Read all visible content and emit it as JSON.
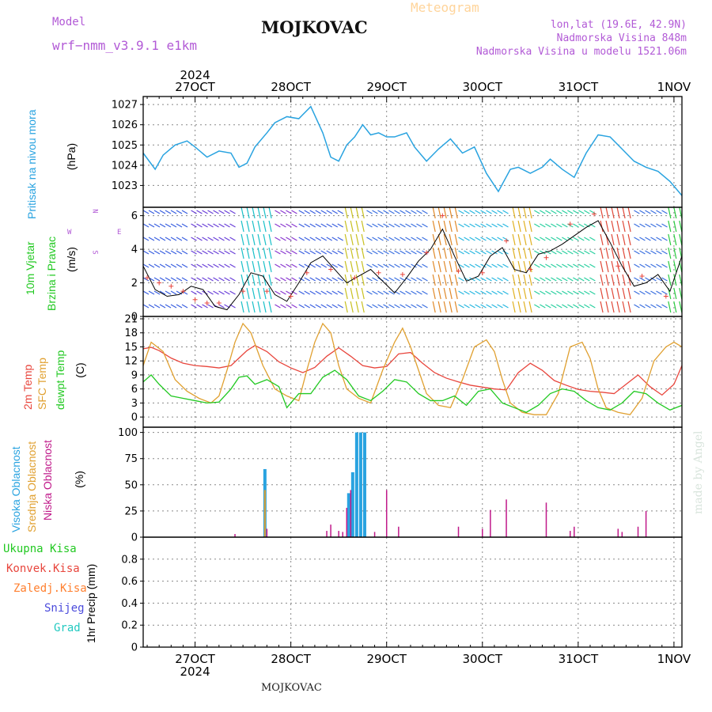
{
  "header": {
    "model_label": "Model",
    "model_name": "wrf−nmm_v3.9.1  e1km",
    "station": "MOJKOVAC",
    "meteogram": "Meteogram",
    "lonlat": "lon,lat (19.6E, 42.9N)",
    "elev": "Nadmorska Visina 848m",
    "elev_model": "Nadmorska Visina u modelu 1521.06m",
    "footer_station": "MOJKOVAC",
    "credit": "made by Angel"
  },
  "time_axis": {
    "year": "2024",
    "day_labels": [
      "27OCT",
      "28OCT",
      "29OCT",
      "30OCT",
      "31OCT",
      "1NOV"
    ],
    "x_range_hours": [
      -13,
      122
    ]
  },
  "colors": {
    "pressure": "#29a3e0",
    "temp2m": "#e8453c",
    "sfc_temp": "#e0a030",
    "dewpt": "#22c922",
    "high_cloud": "#29a3e0",
    "mid_cloud": "#e0a030",
    "low_cloud": "#c0198a",
    "wind_speed": "#000000",
    "gust": "#e8453c"
  },
  "panels": {
    "pressure": {
      "label_color_text": "Pritisak na nivou mora",
      "unit": "(hPa)"
    },
    "wind": {
      "label1": "10m Vjetar",
      "label2": "Brzina i Pravac",
      "unit": "(m/s)",
      "compass": {
        "n": "N",
        "s": "S",
        "w": "W",
        "e": "E"
      }
    },
    "temp": {
      "label1": "2m Temp",
      "label2": "SFC Temp",
      "label3": "dewpt Temp",
      "unit": "(C)"
    },
    "cloud": {
      "label1": "Visoka Oblacnost",
      "label2": "Srednja Oblacnost",
      "label3": "Niska Oblacnost",
      "unit": "(%)"
    },
    "precip": {
      "legend": [
        "Ukupna Kisa",
        "Konvek.Kisa",
        "Zaledj.Kisa",
        "Snijeg",
        "Grad"
      ],
      "unit": "1hr Precip (mm)"
    }
  },
  "chart_data": [
    {
      "type": "line",
      "title": "",
      "ylabel": "(hPa)",
      "ylim": [
        1022,
        1027.2
      ],
      "yticks": [
        1023,
        1024,
        1025,
        1026,
        1027
      ],
      "series": [
        {
          "name": "Pritisak na nivou mora",
          "x": [
            -13,
            -10,
            -8,
            -5,
            -2,
            0,
            3,
            6,
            9,
            11,
            13,
            15,
            18,
            20,
            23,
            26,
            29,
            32,
            34,
            36,
            38,
            40,
            42,
            44,
            46,
            48,
            50,
            53,
            55,
            58,
            61,
            64,
            67,
            70,
            73,
            76,
            79,
            81,
            84,
            87,
            89,
            92,
            95,
            98,
            101,
            104,
            107,
            110,
            113,
            116,
            119,
            122
          ],
          "values": [
            1024.6,
            1023.8,
            1024.5,
            1025.0,
            1025.2,
            1024.9,
            1024.4,
            1024.7,
            1024.6,
            1023.9,
            1024.1,
            1024.9,
            1025.6,
            1026.1,
            1026.4,
            1026.3,
            1026.9,
            1025.6,
            1024.4,
            1024.2,
            1025.0,
            1025.4,
            1026.0,
            1025.5,
            1025.6,
            1025.4,
            1025.4,
            1025.6,
            1024.9,
            1024.2,
            1024.8,
            1025.3,
            1024.6,
            1024.9,
            1023.6,
            1022.7,
            1023.8,
            1023.9,
            1023.6,
            1023.9,
            1024.3,
            1023.8,
            1023.4,
            1024.6,
            1025.5,
            1025.4,
            1024.8,
            1024.2,
            1023.9,
            1023.7,
            1023.2,
            1022.5
          ]
        }
      ]
    },
    {
      "type": "line",
      "title": "",
      "ylabel": "(m/s)",
      "ylim": [
        0,
        6.5
      ],
      "yticks": [
        0,
        2,
        4,
        6
      ],
      "series": [
        {
          "name": "Brzina",
          "x": [
            -13,
            -10,
            -7,
            -4,
            -1,
            2,
            5,
            8,
            11,
            14,
            17,
            20,
            23,
            26,
            29,
            32,
            35,
            38,
            41,
            44,
            47,
            50,
            53,
            56,
            59,
            62,
            65,
            68,
            71,
            74,
            77,
            80,
            83,
            86,
            89,
            92,
            95,
            98,
            101,
            104,
            107,
            110,
            113,
            116,
            119,
            122
          ],
          "values": [
            3.0,
            1.6,
            1.2,
            1.3,
            1.8,
            1.6,
            0.6,
            0.4,
            1.3,
            2.6,
            2.4,
            1.3,
            0.9,
            2.0,
            3.2,
            3.6,
            2.8,
            2.0,
            2.4,
            2.8,
            2.1,
            1.4,
            2.3,
            3.3,
            4.0,
            5.2,
            3.6,
            2.1,
            2.4,
            3.6,
            4.1,
            2.8,
            2.6,
            3.7,
            3.9,
            4.3,
            4.8,
            5.3,
            5.7,
            4.4,
            3.0,
            1.8,
            2.0,
            2.5,
            1.5,
            3.6
          ]
        },
        {
          "name": "Udar",
          "x": [
            -12,
            -9,
            -6,
            -3,
            0,
            3,
            6,
            12,
            18,
            24,
            28,
            34,
            40,
            46,
            52,
            58,
            62,
            66,
            72,
            78,
            84,
            88,
            94,
            100,
            106,
            112,
            118
          ],
          "values": [
            2.3,
            2.0,
            1.8,
            1.5,
            1.0,
            0.8,
            0.8,
            1.5,
            1.5,
            1.2,
            2.6,
            2.8,
            2.3,
            2.6,
            2.5,
            3.8,
            6.0,
            2.7,
            2.6,
            4.5,
            2.8,
            3.5,
            5.5,
            6.1,
            3.0,
            2.4,
            1.2
          ]
        }
      ]
    },
    {
      "type": "line",
      "title": "",
      "ylabel": "(C)",
      "ylim": [
        -1.5,
        21
      ],
      "yticks": [
        0,
        3,
        6,
        9,
        12,
        15,
        18,
        21
      ],
      "series": [
        {
          "name": "2m Temp",
          "x": [
            -13,
            -11,
            -9,
            -6,
            -3,
            0,
            3,
            6,
            9,
            11,
            13,
            15,
            18,
            21,
            24,
            27,
            30,
            33,
            36,
            39,
            42,
            45,
            48,
            51,
            54,
            57,
            60,
            63,
            66,
            69,
            72,
            75,
            78,
            81,
            84,
            87,
            90,
            93,
            96,
            99,
            102,
            105,
            108,
            111,
            114,
            117,
            120,
            122
          ],
          "values": [
            14.6,
            14.9,
            14.2,
            12.6,
            11.5,
            11.0,
            10.8,
            10.5,
            11.0,
            12.6,
            14.2,
            15.3,
            14.0,
            11.8,
            10.5,
            9.5,
            10.6,
            13.0,
            14.8,
            13.0,
            11.0,
            10.5,
            10.8,
            13.5,
            13.8,
            11.5,
            9.5,
            8.3,
            7.5,
            6.8,
            6.4,
            6.0,
            5.8,
            9.5,
            11.5,
            10.0,
            7.8,
            6.8,
            5.9,
            5.5,
            5.3,
            5.0,
            7.0,
            9.0,
            6.5,
            4.7,
            7.0,
            11.0
          ]
        },
        {
          "name": "SFC Temp",
          "x": [
            -13,
            -11,
            -8,
            -5,
            -2,
            1,
            4,
            6,
            8,
            10,
            12,
            14,
            17,
            20,
            23,
            26,
            28,
            30,
            32,
            34,
            36,
            38,
            41,
            44,
            47,
            50,
            52,
            54,
            56,
            58,
            61,
            64,
            67,
            70,
            73,
            75,
            77,
            79,
            82,
            85,
            88,
            91,
            94,
            97,
            99,
            101,
            103,
            106,
            109,
            112,
            115,
            118,
            120,
            122
          ],
          "values": [
            11.0,
            16.0,
            14.0,
            8.0,
            5.5,
            4.0,
            3.0,
            4.5,
            10.0,
            16.0,
            20.0,
            18.0,
            11.0,
            6.0,
            4.5,
            3.5,
            10.0,
            16.0,
            20.0,
            18.0,
            11.0,
            6.0,
            4.0,
            3.0,
            10.0,
            16.0,
            19.0,
            15.0,
            10.0,
            5.0,
            2.5,
            2.0,
            8.0,
            15.0,
            16.5,
            14.0,
            8.0,
            3.0,
            1.0,
            0.5,
            0.5,
            5.0,
            15.0,
            16.0,
            12.5,
            6.0,
            2.0,
            1.0,
            0.5,
            4.0,
            12.0,
            15.0,
            16.0,
            15.0
          ]
        },
        {
          "name": "dewpt Temp",
          "x": [
            -13,
            -11,
            -9,
            -6,
            -3,
            0,
            3,
            6,
            9,
            11,
            13,
            15,
            18,
            21,
            23,
            26,
            29,
            32,
            35,
            38,
            41,
            44,
            47,
            50,
            53,
            56,
            59,
            62,
            65,
            68,
            71,
            74,
            77,
            80,
            83,
            86,
            89,
            92,
            95,
            98,
            101,
            104,
            107,
            110,
            113,
            116,
            119,
            122
          ],
          "values": [
            7.5,
            9.0,
            7.0,
            4.5,
            4.0,
            3.5,
            3.0,
            3.2,
            6.0,
            8.5,
            8.8,
            7.0,
            8.0,
            6.5,
            2.0,
            5.0,
            5.0,
            8.5,
            10.0,
            8.0,
            4.5,
            3.5,
            5.5,
            8.0,
            7.5,
            5.0,
            3.5,
            3.5,
            4.5,
            2.5,
            5.5,
            6.0,
            3.0,
            2.0,
            1.0,
            2.5,
            5.0,
            6.0,
            5.5,
            3.5,
            2.0,
            1.5,
            3.0,
            5.5,
            5.0,
            3.0,
            1.5,
            2.5
          ]
        }
      ]
    },
    {
      "type": "bar",
      "title": "",
      "ylabel": "(%)",
      "ylim": [
        0,
        105
      ],
      "yticks": [
        0,
        25,
        50,
        75,
        100
      ],
      "series": [
        {
          "name": "Visoka Oblacnost",
          "x": [
            17.5,
            38.5,
            39.5,
            40.5,
            41.5,
            42.5
          ],
          "values": [
            65,
            42,
            62,
            100,
            100,
            100
          ]
        },
        {
          "name": "Srednja Oblacnost",
          "x": [
            17.5
          ],
          "values": [
            45
          ]
        },
        {
          "name": "Niska Oblacnost",
          "x": [
            10,
            18,
            33,
            34,
            36,
            37,
            38,
            39,
            45,
            48,
            51,
            66,
            72,
            74,
            78,
            88,
            94,
            95,
            106,
            107,
            111,
            113
          ],
          "values": [
            3,
            8,
            6,
            12,
            6,
            5,
            28,
            45,
            5,
            45,
            10,
            10,
            8,
            26,
            36,
            33,
            6,
            10,
            8,
            5,
            10,
            25
          ]
        }
      ]
    },
    {
      "type": "bar",
      "title": "",
      "ylabel": "1hr Precip (mm)",
      "ylim": [
        0,
        1.0
      ],
      "yticks": [
        0,
        0.2,
        0.4,
        0.6,
        0.8
      ],
      "series": [
        {
          "name": "Ukupna Kisa",
          "x": [],
          "values": []
        }
      ]
    }
  ]
}
